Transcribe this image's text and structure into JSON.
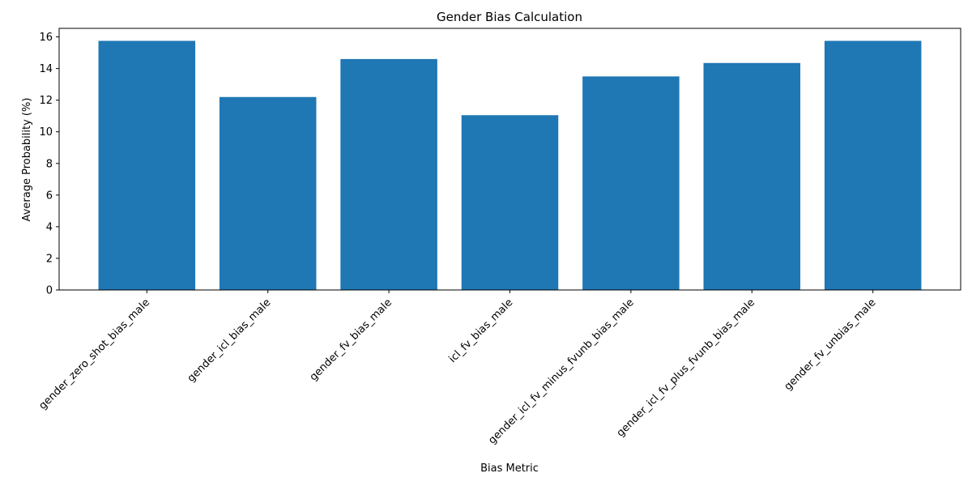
{
  "chart_data": {
    "type": "bar",
    "title": "Gender Bias Calculation",
    "xlabel": "Bias Metric",
    "ylabel": "Average Probability (%)",
    "categories": [
      "gender_zero_shot_bias_male",
      "gender_icl_bias_male",
      "gender_fv_bias_male",
      "icl_fv_bias_male",
      "gender_icl_fv_minus_fvunb_bias_male",
      "gender_icl_fv_plus_fvunb_bias_male",
      "gender_fv_unbias_male"
    ],
    "values": [
      15.75,
      12.2,
      14.6,
      11.05,
      13.5,
      14.35,
      15.75
    ],
    "ylim": [
      0,
      16.54
    ],
    "yticks": [
      0,
      2,
      4,
      6,
      8,
      10,
      12,
      14,
      16
    ],
    "bar_color": "#1f77b4",
    "grid": false,
    "legend": "none"
  }
}
